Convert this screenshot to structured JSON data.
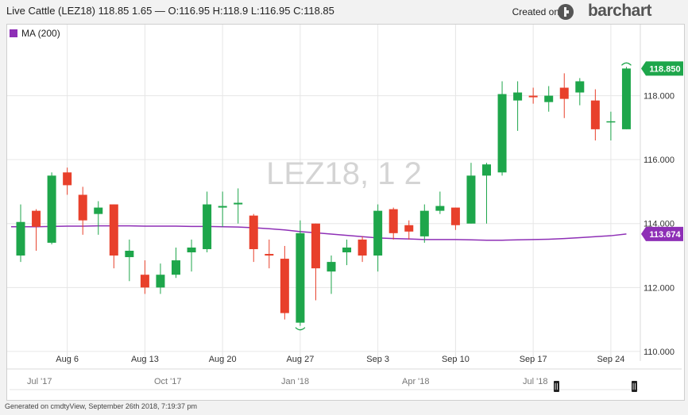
{
  "header": {
    "title": "Live Cattle (LEZ18) 118.85 1.65 — O:116.95 H:118.9 L:116.95 C:118.85",
    "credit_label": "Created on",
    "brand": "barchart"
  },
  "legend": {
    "label": "MA (200)",
    "color": "#8e2fb6"
  },
  "watermark": "LEZ18, 1 2",
  "footer": "Generated on cmdtyView, September 26th 2018, 7:19:37 pm",
  "colors": {
    "up": "#1ea64b",
    "down": "#e8402b",
    "ma": "#8e2fb6",
    "grid": "#e6e6e6"
  },
  "chart_data": {
    "type": "candlestick",
    "ylim": [
      109.7,
      120.0
    ],
    "y_ticks": [
      "110.000",
      "112.000",
      "114.000",
      "116.000",
      "118.000"
    ],
    "y_tick_values": [
      110,
      112,
      114,
      116,
      118
    ],
    "x_ticks": [
      {
        "label": "Aug 6",
        "index": 3
      },
      {
        "label": "Aug 13",
        "index": 8
      },
      {
        "label": "Aug 20",
        "index": 13
      },
      {
        "label": "Aug 27",
        "index": 18
      },
      {
        "label": "Sep 3",
        "index": 23
      },
      {
        "label": "Sep 10",
        "index": 28
      },
      {
        "label": "Sep 17",
        "index": 33
      },
      {
        "label": "Sep 24",
        "index": 38
      }
    ],
    "navigator_labels": [
      {
        "label": "Jul '17",
        "pos": 0.02
      },
      {
        "label": "Oct '17",
        "pos": 0.22
      },
      {
        "label": "Jan '18",
        "pos": 0.42
      },
      {
        "label": "Apr '18",
        "pos": 0.61
      },
      {
        "label": "Jul '18",
        "pos": 0.8
      }
    ],
    "candles": [
      {
        "o": 113.0,
        "h": 114.6,
        "l": 112.8,
        "c": 114.05
      },
      {
        "o": 114.4,
        "h": 114.45,
        "l": 113.15,
        "c": 113.9
      },
      {
        "o": 113.4,
        "h": 115.6,
        "l": 113.35,
        "c": 115.5
      },
      {
        "o": 115.6,
        "h": 115.75,
        "l": 114.9,
        "c": 115.2
      },
      {
        "o": 114.9,
        "h": 115.15,
        "l": 113.65,
        "c": 114.1
      },
      {
        "o": 114.3,
        "h": 114.7,
        "l": 113.65,
        "c": 114.5
      },
      {
        "o": 114.6,
        "h": 114.6,
        "l": 112.6,
        "c": 113.0
      },
      {
        "o": 112.95,
        "h": 113.5,
        "l": 112.2,
        "c": 113.15
      },
      {
        "o": 112.4,
        "h": 112.85,
        "l": 111.8,
        "c": 112.0
      },
      {
        "o": 112.0,
        "h": 112.75,
        "l": 111.8,
        "c": 112.4
      },
      {
        "o": 112.4,
        "h": 113.25,
        "l": 112.3,
        "c": 112.85
      },
      {
        "o": 113.1,
        "h": 113.5,
        "l": 112.5,
        "c": 113.25
      },
      {
        "o": 113.2,
        "h": 115.0,
        "l": 113.1,
        "c": 114.6
      },
      {
        "o": 114.5,
        "h": 115.0,
        "l": 113.9,
        "c": 114.55
      },
      {
        "o": 114.6,
        "h": 115.1,
        "l": 114.0,
        "c": 114.65
      },
      {
        "o": 114.25,
        "h": 114.3,
        "l": 112.8,
        "c": 113.2
      },
      {
        "o": 113.05,
        "h": 113.5,
        "l": 112.6,
        "c": 113.0
      },
      {
        "o": 112.9,
        "h": 113.3,
        "l": 111.0,
        "c": 111.2
      },
      {
        "o": 110.9,
        "h": 114.1,
        "l": 110.8,
        "c": 113.7
      },
      {
        "o": 114.0,
        "h": 114.0,
        "l": 111.6,
        "c": 112.6
      },
      {
        "o": 112.5,
        "h": 113.0,
        "l": 111.8,
        "c": 112.8
      },
      {
        "o": 113.1,
        "h": 113.5,
        "l": 112.7,
        "c": 113.25
      },
      {
        "o": 113.5,
        "h": 113.6,
        "l": 112.8,
        "c": 113.0
      },
      {
        "o": 113.0,
        "h": 114.6,
        "l": 112.5,
        "c": 114.4
      },
      {
        "o": 114.45,
        "h": 114.5,
        "l": 113.5,
        "c": 113.7
      },
      {
        "o": 113.95,
        "h": 114.1,
        "l": 113.5,
        "c": 113.75
      },
      {
        "o": 113.6,
        "h": 114.6,
        "l": 113.4,
        "c": 114.4
      },
      {
        "o": 114.4,
        "h": 115.0,
        "l": 114.3,
        "c": 114.55
      },
      {
        "o": 114.5,
        "h": 114.5,
        "l": 113.8,
        "c": 113.95
      },
      {
        "o": 114.0,
        "h": 115.9,
        "l": 114.0,
        "c": 115.5
      },
      {
        "o": 115.5,
        "h": 115.9,
        "l": 114.0,
        "c": 115.85
      },
      {
        "o": 115.6,
        "h": 118.45,
        "l": 115.5,
        "c": 118.05
      },
      {
        "o": 117.85,
        "h": 118.45,
        "l": 116.9,
        "c": 118.1
      },
      {
        "o": 118.0,
        "h": 118.25,
        "l": 117.75,
        "c": 117.95
      },
      {
        "o": 117.8,
        "h": 118.3,
        "l": 117.5,
        "c": 118.0
      },
      {
        "o": 118.25,
        "h": 118.7,
        "l": 117.3,
        "c": 117.9
      },
      {
        "o": 118.1,
        "h": 118.55,
        "l": 117.7,
        "c": 118.45
      },
      {
        "o": 117.85,
        "h": 118.2,
        "l": 116.6,
        "c": 116.95
      },
      {
        "o": 117.2,
        "h": 117.5,
        "l": 116.6,
        "c": 117.2
      },
      {
        "o": 116.95,
        "h": 118.9,
        "l": 116.95,
        "c": 118.85
      }
    ],
    "ma": {
      "name": "MA (200)",
      "values": [
        113.9,
        113.9,
        113.91,
        113.92,
        113.92,
        113.93,
        113.93,
        113.93,
        113.92,
        113.92,
        113.92,
        113.91,
        113.91,
        113.9,
        113.89,
        113.87,
        113.84,
        113.8,
        113.75,
        113.71,
        113.67,
        113.63,
        113.59,
        113.55,
        113.53,
        113.52,
        113.5,
        113.5,
        113.5,
        113.49,
        113.48,
        113.48,
        113.49,
        113.5,
        113.51,
        113.53,
        113.56,
        113.59,
        113.62,
        113.674
      ]
    },
    "last_price_label": "118.850",
    "last_ma_label": "113.674"
  }
}
